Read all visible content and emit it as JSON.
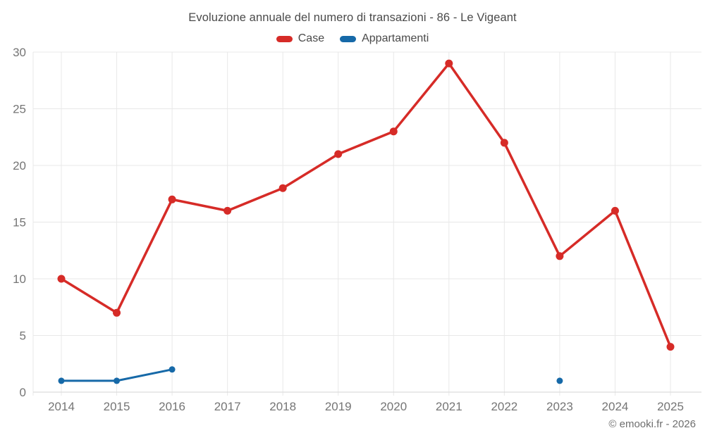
{
  "chart_data": {
    "type": "line",
    "title": "Evoluzione annuale del numero di transazioni - 86 - Le Vigeant",
    "categories": [
      "2014",
      "2015",
      "2016",
      "2017",
      "2018",
      "2019",
      "2020",
      "2021",
      "2022",
      "2023",
      "2024",
      "2025"
    ],
    "series": [
      {
        "name": "Case",
        "color": "#d62b27",
        "values": [
          10,
          7,
          17,
          16,
          18,
          21,
          23,
          29,
          22,
          12,
          16,
          4
        ]
      },
      {
        "name": "Appartamenti",
        "color": "#1669a8",
        "values": [
          1,
          1,
          2,
          null,
          null,
          null,
          null,
          null,
          null,
          1,
          null,
          null
        ]
      }
    ],
    "xlabel": "",
    "ylabel": "",
    "ylim": [
      0,
      30
    ],
    "yticks": [
      0,
      5,
      10,
      15,
      20,
      25,
      30
    ],
    "grid": true,
    "legend_position": "top",
    "copyright": "© emooki.fr - 2026",
    "colors": {
      "grid": "#e8e8e8",
      "axis_baseline": "#d6d6d6",
      "title_text": "#4a4a4a",
      "tick_text": "#757575"
    }
  }
}
